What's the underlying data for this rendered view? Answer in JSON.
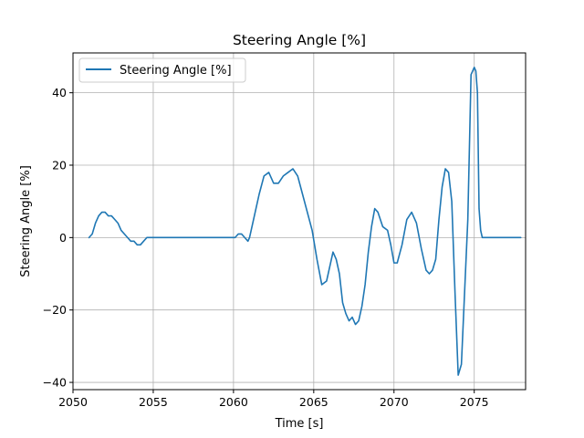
{
  "chart_data": {
    "type": "line",
    "title": "Steering Angle [%]",
    "xlabel": "Time [s]",
    "ylabel": "Steering Angle [%]",
    "xlim": [
      2050.0,
      2078.2
    ],
    "ylim": [
      -42,
      51
    ],
    "x_ticks": [
      2050,
      2055,
      2060,
      2065,
      2070,
      2075
    ],
    "y_ticks": [
      -40,
      -20,
      0,
      20,
      40
    ],
    "tick_labels_x": [
      "2050",
      "2055",
      "2060",
      "2065",
      "2070",
      "2075"
    ],
    "tick_labels_y": [
      "−40",
      "−20",
      "0",
      "20",
      "40"
    ],
    "grid": true,
    "legend": {
      "position": "upper-left",
      "entries": [
        "Steering Angle [%]"
      ]
    },
    "colors": {
      "series": "#1f77b4",
      "grid": "#b0b0b0",
      "frame": "#000000"
    },
    "series": [
      {
        "name": "Steering Angle [%]",
        "x": [
          2051.0,
          2051.2,
          2051.4,
          2051.6,
          2051.8,
          2052.0,
          2052.2,
          2052.4,
          2052.6,
          2052.8,
          2053.0,
          2053.2,
          2053.4,
          2053.6,
          2053.8,
          2054.0,
          2054.2,
          2054.4,
          2054.6,
          2054.8,
          2055.0,
          2057.0,
          2059.0,
          2060.1,
          2060.3,
          2060.5,
          2060.7,
          2060.9,
          2061.0,
          2061.3,
          2061.6,
          2061.9,
          2062.2,
          2062.5,
          2062.8,
          2063.1,
          2063.4,
          2063.7,
          2064.0,
          2064.3,
          2064.6,
          2064.9,
          2065.2,
          2065.5,
          2065.8,
          2066.0,
          2066.2,
          2066.4,
          2066.6,
          2066.8,
          2067.0,
          2067.2,
          2067.4,
          2067.6,
          2067.8,
          2068.0,
          2068.2,
          2068.4,
          2068.6,
          2068.8,
          2069.0,
          2069.3,
          2069.6,
          2069.8,
          2070.0,
          2070.2,
          2070.5,
          2070.8,
          2071.1,
          2071.4,
          2071.7,
          2072.0,
          2072.2,
          2072.4,
          2072.6,
          2072.8,
          2073.0,
          2073.2,
          2073.4,
          2073.6,
          2073.8,
          2074.0,
          2074.2,
          2074.4,
          2074.6,
          2074.8,
          2075.0,
          2075.1,
          2075.2,
          2075.3,
          2075.4,
          2075.5,
          2075.6,
          2075.7,
          2075.8,
          2076.0,
          2077.0,
          2077.9
        ],
        "y": [
          0,
          1,
          4,
          6,
          7,
          7,
          6,
          6,
          5,
          4,
          2,
          1,
          0,
          -1,
          -1,
          -2,
          -2,
          -1,
          0,
          0,
          0,
          0,
          0,
          0,
          1,
          1,
          0,
          -1,
          0,
          6,
          12,
          17,
          18,
          15,
          15,
          17,
          18,
          19,
          17,
          12,
          7,
          2,
          -6,
          -13,
          -12,
          -8,
          -4,
          -6,
          -10,
          -18,
          -21,
          -23,
          -22,
          -24,
          -23,
          -19,
          -13,
          -4,
          3,
          8,
          7,
          3,
          2,
          -2,
          -7,
          -7,
          -2,
          5,
          7,
          4,
          -3,
          -9,
          -10,
          -9,
          -6,
          5,
          14,
          19,
          18,
          10,
          -15,
          -38,
          -35,
          -15,
          5,
          45,
          47,
          46,
          40,
          8,
          2,
          0,
          0,
          0,
          0,
          0,
          0,
          0
        ]
      }
    ]
  }
}
